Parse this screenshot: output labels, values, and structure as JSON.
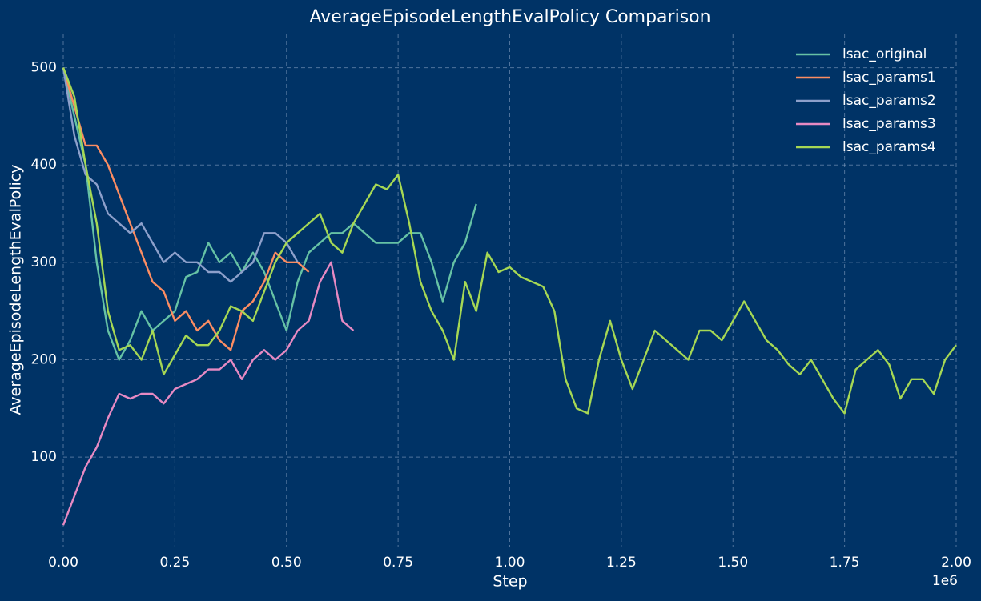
{
  "chart_data": {
    "type": "line",
    "title": "AverageEpisodeLengthEvalPolicy Comparison",
    "x_label": "Step",
    "y_label": "AverageEpisodeLengthEvalPolicy",
    "x_offset_label": "1e6",
    "x": [
      0,
      25000,
      50000,
      75000,
      100000,
      125000,
      150000,
      175000,
      200000,
      225000,
      250000,
      275000,
      300000,
      325000,
      350000,
      375000,
      400000,
      425000,
      450000,
      475000,
      500000,
      525000,
      550000,
      575000,
      600000,
      625000,
      650000,
      675000,
      700000,
      725000,
      750000,
      775000,
      800000,
      825000,
      850000,
      875000,
      900000,
      925000,
      950000,
      975000,
      1000000,
      1025000,
      1050000,
      1075000,
      1100000,
      1125000,
      1150000,
      1175000,
      1200000,
      1225000,
      1250000,
      1275000,
      1300000,
      1325000,
      1350000,
      1375000,
      1400000,
      1425000,
      1450000,
      1475000,
      1500000,
      1525000,
      1550000,
      1575000,
      1600000,
      1625000,
      1650000,
      1675000,
      1700000,
      1725000,
      1750000,
      1775000,
      1800000,
      1825000,
      1850000,
      1875000,
      1900000,
      1925000,
      1950000,
      1975000,
      2000000
    ],
    "series": [
      {
        "name": "lsac_original",
        "color": "#66c2a5",
        "values": [
          500,
          450,
          400,
          300,
          230,
          200,
          220,
          250,
          230,
          240,
          250,
          285,
          290,
          320,
          300,
          310,
          290,
          310,
          290,
          260,
          230,
          280,
          310,
          320,
          330,
          330,
          340,
          330,
          320,
          320,
          320,
          330,
          330,
          300,
          260,
          300,
          320,
          360,
          null,
          null,
          null,
          null,
          null,
          null,
          null,
          null,
          null,
          null,
          null,
          null,
          null,
          null,
          null,
          null,
          null,
          null,
          null,
          null,
          null,
          null,
          null,
          null,
          null,
          null,
          null,
          null,
          null,
          null,
          null,
          null,
          null,
          null,
          null,
          null,
          null,
          null,
          null,
          null,
          null,
          null,
          null
        ]
      },
      {
        "name": "lsac_params1",
        "color": "#fc8d62",
        "values": [
          500,
          460,
          420,
          420,
          400,
          370,
          340,
          310,
          280,
          270,
          240,
          250,
          230,
          240,
          220,
          210,
          250,
          260,
          280,
          310,
          300,
          300,
          290,
          null,
          null,
          null,
          null,
          null,
          null,
          null,
          null,
          null,
          null,
          null,
          null,
          null,
          null,
          null,
          null,
          null,
          null,
          null,
          null,
          null,
          null,
          null,
          null,
          null,
          null,
          null,
          null,
          null,
          null,
          null,
          null,
          null,
          null,
          null,
          null,
          null,
          null,
          null,
          null,
          null,
          null,
          null,
          null,
          null,
          null,
          null,
          null,
          null,
          null,
          null,
          null,
          null,
          null,
          null,
          null,
          null,
          null
        ]
      },
      {
        "name": "lsac_params2",
        "color": "#8da0cb",
        "values": [
          500,
          430,
          390,
          380,
          350,
          340,
          330,
          340,
          320,
          300,
          310,
          300,
          300,
          290,
          290,
          280,
          290,
          300,
          330,
          330,
          320,
          300,
          null,
          null,
          null,
          null,
          null,
          null,
          null,
          null,
          null,
          null,
          null,
          null,
          null,
          null,
          null,
          null,
          null,
          null,
          null,
          null,
          null,
          null,
          null,
          null,
          null,
          null,
          null,
          null,
          null,
          null,
          null,
          null,
          null,
          null,
          null,
          null,
          null,
          null,
          null,
          null,
          null,
          null,
          null,
          null,
          null,
          null,
          null,
          null,
          null,
          null,
          null,
          null,
          null,
          null,
          null,
          null,
          null,
          null,
          null
        ]
      },
      {
        "name": "lsac_params3",
        "color": "#e78ac3",
        "values": [
          30,
          60,
          90,
          110,
          140,
          165,
          160,
          165,
          165,
          155,
          170,
          175,
          180,
          190,
          190,
          200,
          180,
          200,
          210,
          200,
          210,
          230,
          240,
          280,
          300,
          240,
          230,
          null,
          null,
          null,
          null,
          null,
          null,
          null,
          null,
          null,
          null,
          null,
          null,
          null,
          null,
          null,
          null,
          null,
          null,
          null,
          null,
          null,
          null,
          null,
          null,
          null,
          null,
          null,
          null,
          null,
          null,
          null,
          null,
          null,
          null,
          null,
          null,
          null,
          null,
          null,
          null,
          null,
          null,
          null,
          null,
          null,
          null,
          null,
          null,
          null,
          null,
          null,
          null,
          null,
          null
        ]
      },
      {
        "name": "lsac_params4",
        "color": "#a6d854",
        "values": [
          500,
          470,
          400,
          340,
          250,
          210,
          215,
          200,
          230,
          185,
          205,
          225,
          215,
          215,
          230,
          255,
          250,
          240,
          270,
          300,
          320,
          330,
          340,
          350,
          320,
          310,
          340,
          360,
          380,
          375,
          390,
          340,
          280,
          250,
          230,
          200,
          280,
          250,
          310,
          290,
          295,
          285,
          280,
          275,
          250,
          180,
          150,
          145,
          200,
          240,
          200,
          170,
          200,
          230,
          220,
          210,
          200,
          230,
          230,
          220,
          240,
          260,
          240,
          220,
          210,
          195,
          185,
          200,
          180,
          160,
          145,
          190,
          200,
          210,
          195,
          160,
          180,
          180,
          165,
          200,
          215
        ]
      }
    ],
    "xlim": [
      0,
      2000000
    ],
    "xticks": [
      {
        "value": 0,
        "label": "0.00"
      },
      {
        "value": 250000,
        "label": "0.25"
      },
      {
        "value": 500000,
        "label": "0.50"
      },
      {
        "value": 750000,
        "label": "0.75"
      },
      {
        "value": 1000000,
        "label": "1.00"
      },
      {
        "value": 1250000,
        "label": "1.25"
      },
      {
        "value": 1500000,
        "label": "1.50"
      },
      {
        "value": 1750000,
        "label": "1.75"
      },
      {
        "value": 2000000,
        "label": "2.00"
      }
    ],
    "ylim": [
      8,
      535
    ],
    "yticks": [
      100,
      200,
      300,
      400,
      500
    ],
    "grid": true,
    "legend": "upper right"
  }
}
